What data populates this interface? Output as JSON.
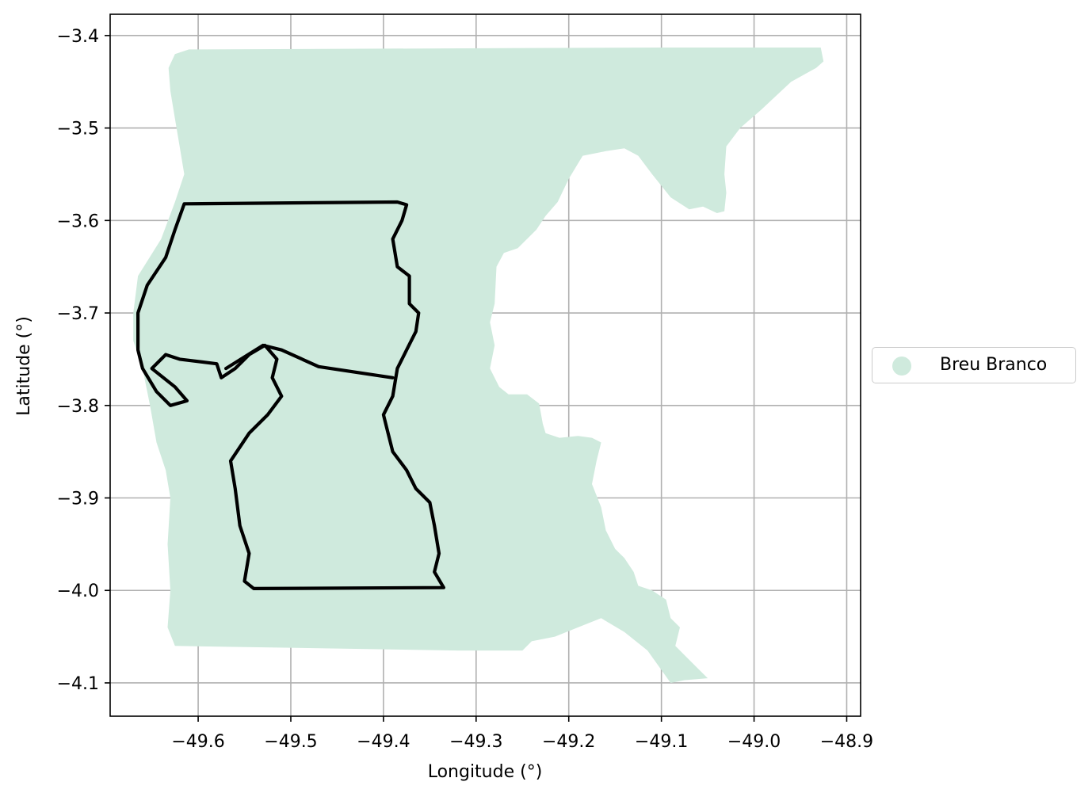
{
  "chart_data": {
    "type": "map",
    "xlabel": "Longitude (°)",
    "ylabel": "Latitude (°)",
    "xlim": [
      -49.695,
      -48.885
    ],
    "ylim": [
      -4.136,
      -3.377
    ],
    "xticks": [
      -49.6,
      -49.5,
      -49.4,
      -49.3,
      -49.2,
      -49.1,
      -49.0,
      -48.9
    ],
    "xtick_labels": [
      "−49.6",
      "−49.5",
      "−49.4",
      "−49.3",
      "−49.2",
      "−49.1",
      "−49.0",
      "−48.9"
    ],
    "yticks": [
      -3.4,
      -3.5,
      -3.6,
      -3.7,
      -3.8,
      -3.9,
      -4.0,
      -4.1
    ],
    "ytick_labels": [
      "−3.4",
      "−3.5",
      "−3.6",
      "−3.7",
      "−3.8",
      "−3.9",
      "−4.0",
      "−4.1"
    ],
    "grid": true,
    "legend_position": "center-right-outside",
    "series": [
      {
        "name": "Breu Branco",
        "kind": "polygon",
        "color": "#cfeadd",
        "coords": [
          [
            -49.61,
            -3.415
          ],
          [
            -49.1,
            -3.413
          ],
          [
            -48.928,
            -3.413
          ],
          [
            -48.925,
            -3.428
          ],
          [
            -48.933,
            -3.435
          ],
          [
            -48.96,
            -3.45
          ],
          [
            -48.992,
            -3.48
          ],
          [
            -49.015,
            -3.5
          ],
          [
            -49.03,
            -3.52
          ],
          [
            -49.032,
            -3.55
          ],
          [
            -49.03,
            -3.57
          ],
          [
            -49.032,
            -3.59
          ],
          [
            -49.04,
            -3.592
          ],
          [
            -49.055,
            -3.585
          ],
          [
            -49.07,
            -3.588
          ],
          [
            -49.09,
            -3.575
          ],
          [
            -49.11,
            -3.55
          ],
          [
            -49.125,
            -3.53
          ],
          [
            -49.14,
            -3.522
          ],
          [
            -49.16,
            -3.525
          ],
          [
            -49.185,
            -3.53
          ],
          [
            -49.2,
            -3.555
          ],
          [
            -49.212,
            -3.58
          ],
          [
            -49.225,
            -3.595
          ],
          [
            -49.235,
            -3.61
          ],
          [
            -49.255,
            -3.63
          ],
          [
            -49.27,
            -3.635
          ],
          [
            -49.278,
            -3.65
          ],
          [
            -49.28,
            -3.69
          ],
          [
            -49.285,
            -3.71
          ],
          [
            -49.28,
            -3.735
          ],
          [
            -49.285,
            -3.76
          ],
          [
            -49.275,
            -3.78
          ],
          [
            -49.265,
            -3.788
          ],
          [
            -49.245,
            -3.788
          ],
          [
            -49.232,
            -3.798
          ],
          [
            -49.228,
            -3.82
          ],
          [
            -49.225,
            -3.83
          ],
          [
            -49.21,
            -3.835
          ],
          [
            -49.19,
            -3.833
          ],
          [
            -49.175,
            -3.835
          ],
          [
            -49.165,
            -3.84
          ],
          [
            -49.17,
            -3.86
          ],
          [
            -49.175,
            -3.885
          ],
          [
            -49.165,
            -3.91
          ],
          [
            -49.16,
            -3.935
          ],
          [
            -49.15,
            -3.955
          ],
          [
            -49.14,
            -3.965
          ],
          [
            -49.13,
            -3.98
          ],
          [
            -49.125,
            -3.995
          ],
          [
            -49.11,
            -4.0
          ],
          [
            -49.095,
            -4.01
          ],
          [
            -49.09,
            -4.03
          ],
          [
            -49.08,
            -4.04
          ],
          [
            -49.085,
            -4.06
          ],
          [
            -49.075,
            -4.07
          ],
          [
            -49.06,
            -4.085
          ],
          [
            -49.05,
            -4.095
          ],
          [
            -49.075,
            -4.097
          ],
          [
            -49.09,
            -4.1
          ],
          [
            -49.115,
            -4.065
          ],
          [
            -49.14,
            -4.045
          ],
          [
            -49.165,
            -4.03
          ],
          [
            -49.19,
            -4.04
          ],
          [
            -49.215,
            -4.05
          ],
          [
            -49.24,
            -4.055
          ],
          [
            -49.25,
            -4.065
          ],
          [
            -49.32,
            -4.065
          ],
          [
            -49.625,
            -4.06
          ],
          [
            -49.633,
            -4.04
          ],
          [
            -49.63,
            -4.0
          ],
          [
            -49.633,
            -3.95
          ],
          [
            -49.63,
            -3.9
          ],
          [
            -49.635,
            -3.87
          ],
          [
            -49.645,
            -3.84
          ],
          [
            -49.652,
            -3.8
          ],
          [
            -49.66,
            -3.76
          ],
          [
            -49.67,
            -3.73
          ],
          [
            -49.67,
            -3.7
          ],
          [
            -49.665,
            -3.66
          ],
          [
            -49.64,
            -3.62
          ],
          [
            -49.625,
            -3.58
          ],
          [
            -49.615,
            -3.55
          ],
          [
            -49.62,
            -3.52
          ],
          [
            -49.625,
            -3.49
          ],
          [
            -49.63,
            -3.46
          ],
          [
            -49.632,
            -3.435
          ],
          [
            -49.625,
            -3.42
          ]
        ]
      },
      {
        "name": "",
        "kind": "outline",
        "color": "#000000",
        "coords": [
          [
            -49.615,
            -3.582
          ],
          [
            -49.385,
            -3.58
          ],
          [
            -49.375,
            -3.583
          ],
          [
            -49.38,
            -3.6
          ],
          [
            -49.39,
            -3.62
          ],
          [
            -49.385,
            -3.65
          ],
          [
            -49.372,
            -3.66
          ],
          [
            -49.372,
            -3.69
          ],
          [
            -49.362,
            -3.7
          ],
          [
            -49.365,
            -3.72
          ],
          [
            -49.375,
            -3.74
          ],
          [
            -49.385,
            -3.76
          ],
          [
            -49.39,
            -3.79
          ],
          [
            -49.4,
            -3.81
          ],
          [
            -49.395,
            -3.83
          ],
          [
            -49.39,
            -3.85
          ],
          [
            -49.375,
            -3.87
          ],
          [
            -49.365,
            -3.89
          ],
          [
            -49.35,
            -3.905
          ],
          [
            -49.345,
            -3.93
          ],
          [
            -49.34,
            -3.96
          ],
          [
            -49.345,
            -3.98
          ],
          [
            -49.335,
            -3.997
          ],
          [
            -49.54,
            -3.998
          ],
          [
            -49.55,
            -3.99
          ],
          [
            -49.545,
            -3.96
          ],
          [
            -49.555,
            -3.93
          ],
          [
            -49.56,
            -3.89
          ],
          [
            -49.565,
            -3.86
          ],
          [
            -49.545,
            -3.83
          ],
          [
            -49.525,
            -3.81
          ],
          [
            -49.51,
            -3.79
          ],
          [
            -49.52,
            -3.77
          ],
          [
            -49.515,
            -3.75
          ],
          [
            -49.528,
            -3.735
          ],
          [
            -49.545,
            -3.745
          ],
          [
            -49.56,
            -3.76
          ],
          [
            -49.575,
            -3.77
          ],
          [
            -49.58,
            -3.755
          ],
          [
            -49.62,
            -3.75
          ],
          [
            -49.635,
            -3.745
          ],
          [
            -49.65,
            -3.76
          ],
          [
            -49.625,
            -3.78
          ],
          [
            -49.612,
            -3.795
          ],
          [
            -49.63,
            -3.8
          ],
          [
            -49.645,
            -3.785
          ],
          [
            -49.66,
            -3.76
          ],
          [
            -49.665,
            -3.74
          ],
          [
            -49.665,
            -3.7
          ],
          [
            -49.655,
            -3.67
          ],
          [
            -49.635,
            -3.64
          ],
          [
            -49.625,
            -3.61
          ],
          [
            -49.615,
            -3.582
          ]
        ]
      },
      {
        "name": "",
        "kind": "outline",
        "color": "#000000",
        "coords": [
          [
            -49.57,
            -3.76
          ],
          [
            -49.53,
            -3.735
          ],
          [
            -49.51,
            -3.74
          ],
          [
            -49.47,
            -3.758
          ],
          [
            -49.39,
            -3.77
          ]
        ]
      }
    ]
  },
  "legend": {
    "label": "Breu Branco",
    "color": "#cfeadd"
  }
}
